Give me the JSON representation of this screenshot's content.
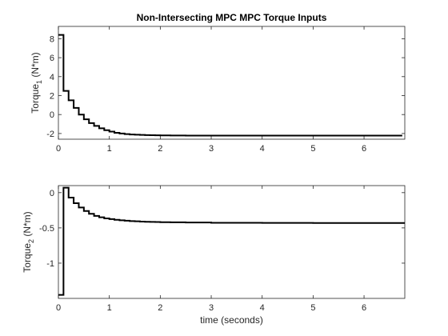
{
  "chart_data": [
    {
      "type": "line",
      "title": "Non-Intersecting MPC MPC Torque Inputs",
      "ylabel": {
        "main": "Torque",
        "subscript": "1",
        "unit": " (N*m)"
      },
      "xlabel": "",
      "xlim": [
        0,
        6.8
      ],
      "ylim": [
        -2.6,
        9.3
      ],
      "xticks": [
        0,
        1,
        2,
        3,
        4,
        5,
        6
      ],
      "xtick_labels": [
        "0",
        "1",
        "2",
        "3",
        "4",
        "5",
        "6"
      ],
      "yticks": [
        -2,
        0,
        2,
        4,
        6,
        8
      ],
      "ytick_labels": [
        "-2",
        "0",
        "2",
        "4",
        "6",
        "8"
      ],
      "grid": false,
      "series": [
        {
          "line_style": "stairs",
          "color": "#000000",
          "x": [
            0,
            0.1,
            0.2,
            0.3,
            0.4,
            0.5,
            0.6,
            0.7,
            0.8,
            0.9,
            1.0,
            1.1,
            1.2,
            1.3,
            1.4,
            1.5,
            1.6,
            1.7,
            1.8,
            1.9,
            2.0,
            2.2,
            2.5,
            3.0,
            4.0,
            5.0,
            6.0,
            6.75
          ],
          "y": [
            8.4,
            2.5,
            1.5,
            0.7,
            0.0,
            -0.5,
            -0.9,
            -1.2,
            -1.45,
            -1.65,
            -1.8,
            -1.92,
            -2.0,
            -2.06,
            -2.1,
            -2.13,
            -2.15,
            -2.17,
            -2.18,
            -2.19,
            -2.2,
            -2.21,
            -2.22,
            -2.22,
            -2.22,
            -2.22,
            -2.22,
            -2.22
          ]
        }
      ]
    },
    {
      "type": "line",
      "title": "",
      "ylabel": {
        "main": "Torque",
        "subscript": "2",
        "unit": " (N*m)"
      },
      "xlabel": "time (seconds)",
      "xlim": [
        0,
        6.8
      ],
      "ylim": [
        -1.5,
        0.1
      ],
      "xticks": [
        0,
        1,
        2,
        3,
        4,
        5,
        6
      ],
      "xtick_labels": [
        "0",
        "1",
        "2",
        "3",
        "4",
        "5",
        "6"
      ],
      "yticks": [
        -1,
        -0.5,
        0
      ],
      "ytick_labels": [
        "-1",
        "-0.5",
        "0"
      ],
      "grid": false,
      "series": [
        {
          "line_style": "stairs",
          "color": "#000000",
          "x": [
            0,
            0.1,
            0.2,
            0.3,
            0.4,
            0.5,
            0.6,
            0.7,
            0.8,
            0.9,
            1.0,
            1.1,
            1.2,
            1.3,
            1.4,
            1.5,
            1.6,
            1.7,
            1.8,
            1.9,
            2.0,
            2.2,
            2.5,
            3.0,
            4.0,
            5.0,
            6.0,
            6.8
          ],
          "y": [
            -1.45,
            0.07,
            -0.07,
            -0.15,
            -0.21,
            -0.26,
            -0.3,
            -0.33,
            -0.35,
            -0.365,
            -0.375,
            -0.385,
            -0.392,
            -0.398,
            -0.403,
            -0.407,
            -0.41,
            -0.413,
            -0.415,
            -0.417,
            -0.419,
            -0.421,
            -0.424,
            -0.427,
            -0.429,
            -0.43,
            -0.43,
            -0.43
          ]
        }
      ]
    }
  ]
}
